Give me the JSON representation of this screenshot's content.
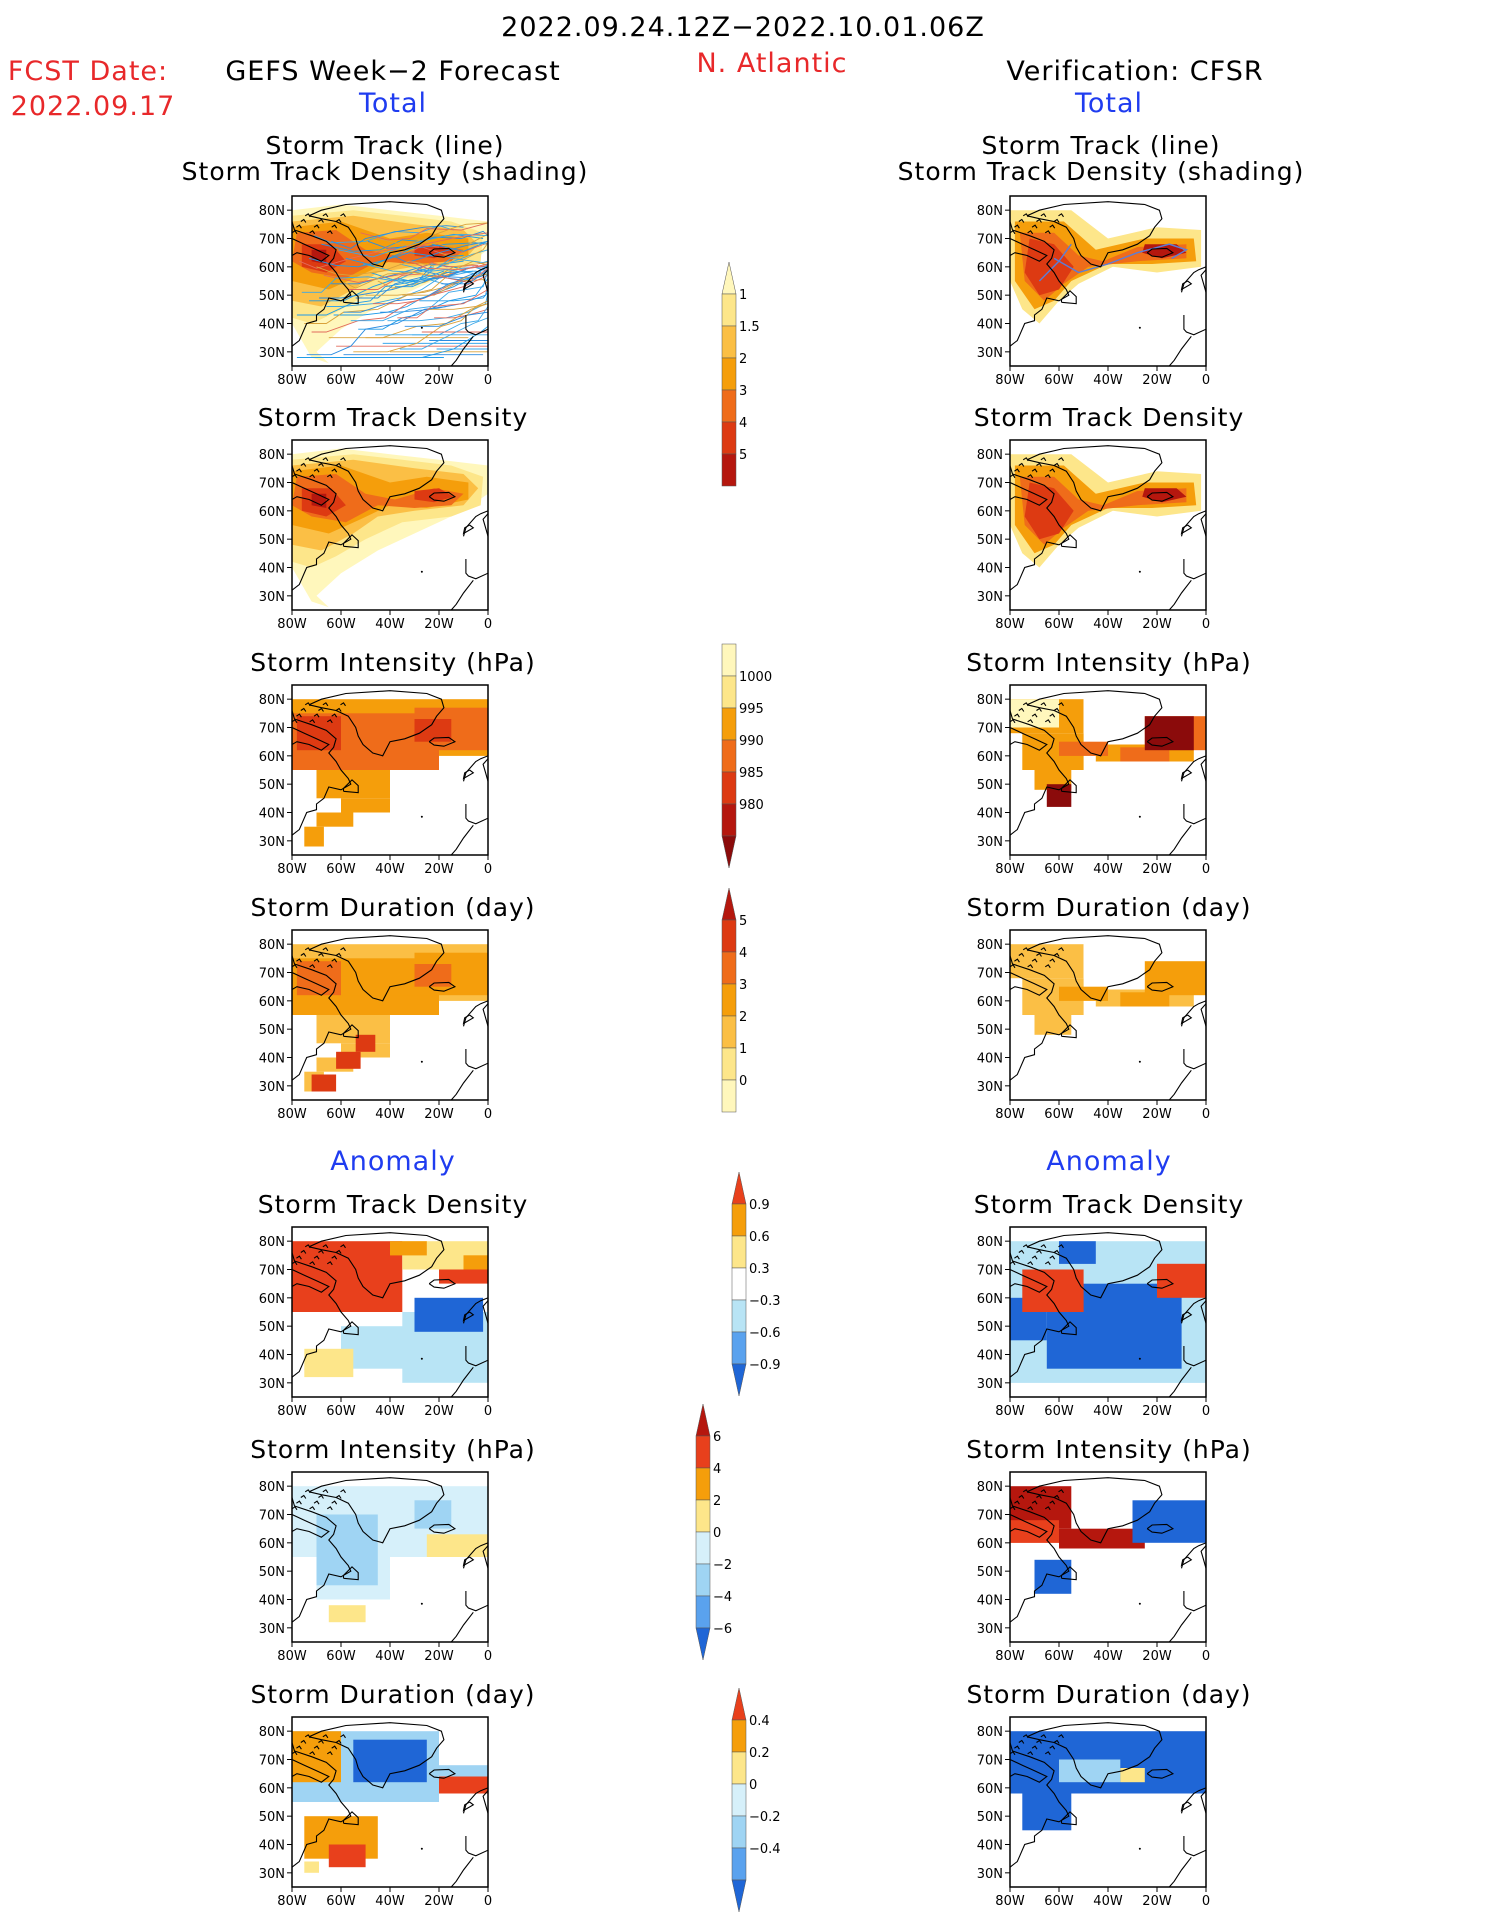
{
  "header": {
    "period": "2022.09.24.12Z−2022.10.01.06Z",
    "fcst_label": "FCST Date:",
    "fcst_date": "2022.09.17",
    "left_title": "GEFS Week−2 Forecast",
    "region": "N. Atlantic",
    "right_title": "Verification: CFSR",
    "total_left": "Total",
    "total_right": "Total",
    "anomaly_left": "Anomaly",
    "anomaly_right": "Anomaly"
  },
  "panel_titles": {
    "track_line": "Storm Track (line)",
    "track_shading": "Storm Track Density (shading)",
    "density": "Storm Track Density",
    "intensity": "Storm Intensity (hPa)",
    "duration": "Storm Duration (day)"
  },
  "chart_data": {
    "type": "heatmap",
    "axes": {
      "x_ticks": [
        "80W",
        "60W",
        "40W",
        "20W",
        "0"
      ],
      "y_ticks": [
        "80N",
        "70N",
        "60N",
        "50N",
        "40N",
        "30N"
      ],
      "lon_range": [
        -80,
        0
      ],
      "lat_range": [
        25,
        85
      ]
    },
    "colorbars": [
      {
        "name": "total_density",
        "labels": [
          "1",
          "1.5",
          "2",
          "3",
          "4",
          "5"
        ],
        "colors": [
          "#fff7bc",
          "#fde68a",
          "#fbbf45",
          "#f59e0b",
          "#ef6c1a",
          "#dd3a12",
          "#b5170e"
        ]
      },
      {
        "name": "total_intensity",
        "labels": [
          "1000",
          "995",
          "990",
          "985",
          "980"
        ],
        "colors": [
          "#fff7bc",
          "#fde68a",
          "#f59e0b",
          "#ef6c1a",
          "#dd3a12",
          "#b5170e",
          "#8b0b0b"
        ]
      },
      {
        "name": "total_duration",
        "labels": [
          "5",
          "4",
          "3",
          "2",
          "1",
          "0"
        ],
        "colors": [
          "#b5170e",
          "#dd3a12",
          "#ef6c1a",
          "#f59e0b",
          "#fbbf45",
          "#fde68a",
          "#fff7bc"
        ]
      },
      {
        "name": "anomaly_density",
        "labels": [
          "0.9",
          "0.6",
          "0.3",
          "−0.3",
          "−0.6",
          "−0.9"
        ],
        "colors": [
          "#e8401c",
          "#f59e0b",
          "#fde68a",
          "#ffffff",
          "#b8e4f5",
          "#5aa2ee",
          "#1f66d6"
        ]
      },
      {
        "name": "anomaly_intensity",
        "labels": [
          "6",
          "4",
          "2",
          "0",
          "−2",
          "−4",
          "−6"
        ],
        "colors": [
          "#b5170e",
          "#e8401c",
          "#f59e0b",
          "#fde68a",
          "#d6f0fa",
          "#9fd4f3",
          "#5aa2ee",
          "#1f66d6"
        ]
      },
      {
        "name": "anomaly_duration",
        "labels": [
          "0.4",
          "0.2",
          "0",
          "−0.2",
          "−0.4"
        ],
        "colors": [
          "#e8401c",
          "#f59e0b",
          "#fde68a",
          "#d6f0fa",
          "#9fd4f3",
          "#5aa2ee",
          "#1f66d6"
        ]
      }
    ]
  }
}
